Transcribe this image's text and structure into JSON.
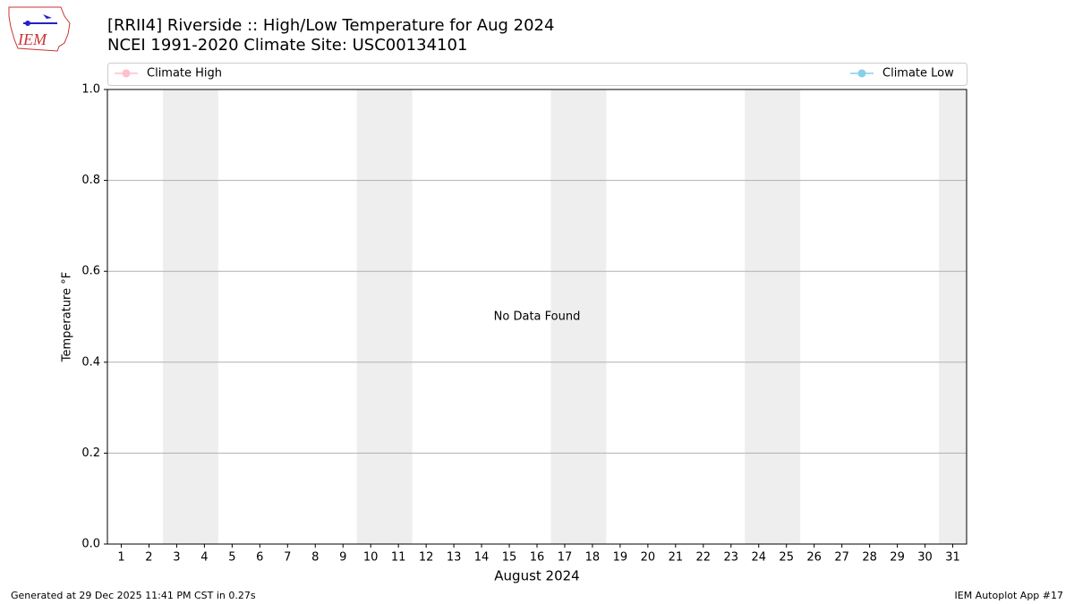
{
  "logo_text": "IEM",
  "chart_data": {
    "type": "line",
    "title": "[RRII4] Riverside :: High/Low Temperature for Aug 2024",
    "subtitle": "NCEI 1991-2020 Climate Site: USC00134101",
    "ylabel": "Temperature °F",
    "xlabel": "August 2024",
    "annotation": "No Data Found",
    "x": [
      1,
      2,
      3,
      4,
      5,
      6,
      7,
      8,
      9,
      10,
      11,
      12,
      13,
      14,
      15,
      16,
      17,
      18,
      19,
      20,
      21,
      22,
      23,
      24,
      25,
      26,
      27,
      28,
      29,
      30,
      31
    ],
    "series": [
      {
        "name": "Climate High",
        "color": "#ffc0cb",
        "values": [
          null,
          null,
          null,
          null,
          null,
          null,
          null,
          null,
          null,
          null,
          null,
          null,
          null,
          null,
          null,
          null,
          null,
          null,
          null,
          null,
          null,
          null,
          null,
          null,
          null,
          null,
          null,
          null,
          null,
          null,
          null
        ]
      },
      {
        "name": "Climate Low",
        "color": "#87ceeb",
        "values": [
          null,
          null,
          null,
          null,
          null,
          null,
          null,
          null,
          null,
          null,
          null,
          null,
          null,
          null,
          null,
          null,
          null,
          null,
          null,
          null,
          null,
          null,
          null,
          null,
          null,
          null,
          null,
          null,
          null,
          null,
          null
        ]
      }
    ],
    "shaded_ranges": [
      [
        2.5,
        4.5
      ],
      [
        9.5,
        11.5
      ],
      [
        16.5,
        18.5
      ],
      [
        23.5,
        25.5
      ],
      [
        30.5,
        31.5
      ]
    ],
    "shade_color": "#eeeeee",
    "xlim": [
      0.5,
      31.5
    ],
    "xticks": [
      1,
      2,
      3,
      4,
      5,
      6,
      7,
      8,
      9,
      10,
      11,
      12,
      13,
      14,
      15,
      16,
      17,
      18,
      19,
      20,
      21,
      22,
      23,
      24,
      25,
      26,
      27,
      28,
      29,
      30,
      31
    ],
    "ylim": [
      0,
      1
    ],
    "yticks": [
      {
        "value": 0,
        "label": "0.0"
      },
      0.2,
      0.4,
      0.6,
      0.8,
      {
        "value": 1,
        "label": "1.0"
      }
    ],
    "grid": true,
    "footer_left": "Generated at 29 Dec 2025 11:41 PM CST in 0.27s",
    "footer_right": "IEM Autoplot App #17"
  }
}
